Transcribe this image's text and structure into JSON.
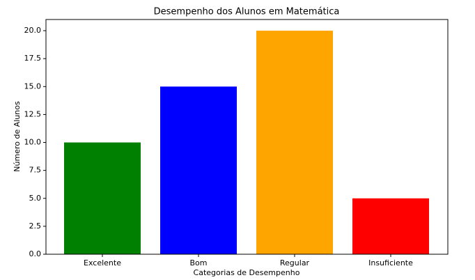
{
  "chart_data": {
    "type": "bar",
    "title": "Desempenho dos Alunos em Matemática",
    "xlabel": "Categorias de Desempenho",
    "ylabel": "Número de Alunos",
    "categories": [
      "Excelente",
      "Bom",
      "Regular",
      "Insuficiente"
    ],
    "values": [
      10,
      15,
      20,
      5
    ],
    "colors": [
      "green",
      "blue",
      "orange",
      "red"
    ],
    "ylim": [
      0,
      21
    ],
    "yticks": [
      {
        "value": 0,
        "label": "0.0"
      },
      2.5,
      {
        "value": 5,
        "label": "5.0"
      },
      7.5,
      {
        "value": 10,
        "label": "10.0"
      },
      12.5,
      {
        "value": 15,
        "label": "15.0"
      },
      17.5,
      {
        "value": 20,
        "label": "20.0"
      }
    ],
    "grid": false
  }
}
